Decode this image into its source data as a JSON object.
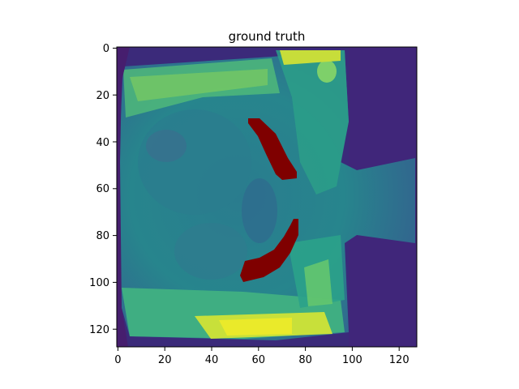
{
  "figure": {
    "title": "ground truth"
  },
  "axes": {
    "x_ticks": [
      0,
      20,
      40,
      60,
      80,
      100,
      120
    ],
    "y_ticks": [
      0,
      20,
      40,
      60,
      80,
      100,
      120
    ],
    "x_range": [
      -0.5,
      127.5
    ],
    "y_range": [
      127.5,
      -0.5
    ]
  },
  "image": {
    "colormap": "viridis",
    "mask_color": "#7f0000",
    "description_kind": "grayscale MRI slice with overlaid segmentation mask"
  }
}
